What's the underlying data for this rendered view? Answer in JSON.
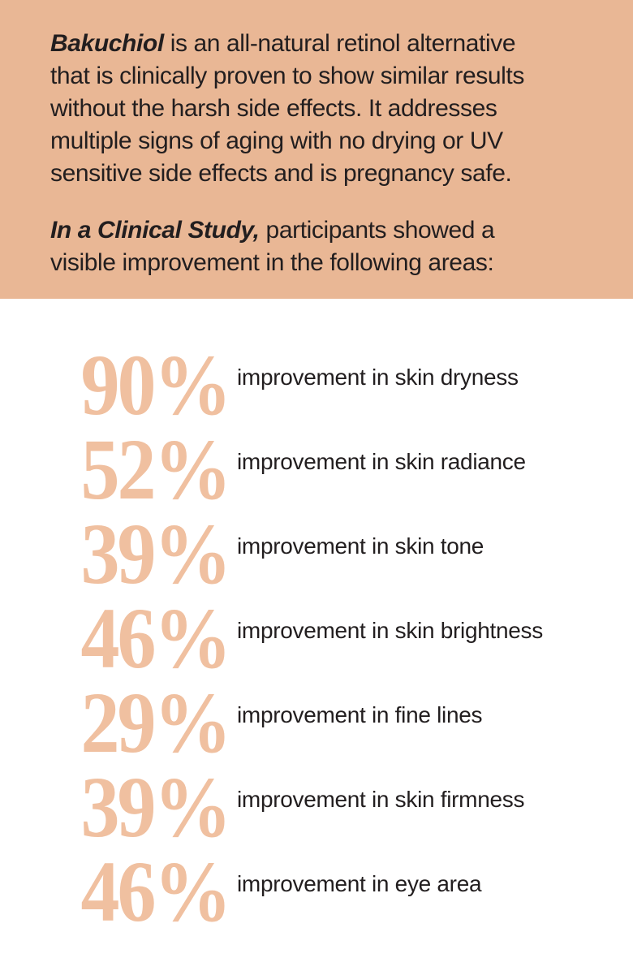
{
  "colors": {
    "page_bg": "#ffffff",
    "panel_bg": "#e9b795",
    "stat_number": "#f0c0a0",
    "text": "#221e1f"
  },
  "intro": {
    "paragraph1": {
      "lead": "Bakuchiol",
      "lines": [
        " is an all-natural retinol alternative",
        "that is clinically proven to show similar results",
        "without the harsh side effects. It addresses",
        "multiple signs of aging with no drying or UV",
        "sensitive side effects and is pregnancy safe."
      ]
    },
    "paragraph2": {
      "lead": "In a Clinical Study,",
      "lines": [
        " participants showed a",
        "visible improvement in the following areas:"
      ]
    }
  },
  "stats": [
    {
      "value": "90%",
      "label": "improvement in skin dryness"
    },
    {
      "value": "52%",
      "label": "improvement in skin radiance"
    },
    {
      "value": "39%",
      "label": "improvement in skin tone"
    },
    {
      "value": "46%",
      "label": "improvement in skin brightness"
    },
    {
      "value": "29%",
      "label": "improvement in fine lines"
    },
    {
      "value": "39%",
      "label": "improvement in skin firmness"
    },
    {
      "value": "46%",
      "label": "improvement in eye area"
    }
  ]
}
